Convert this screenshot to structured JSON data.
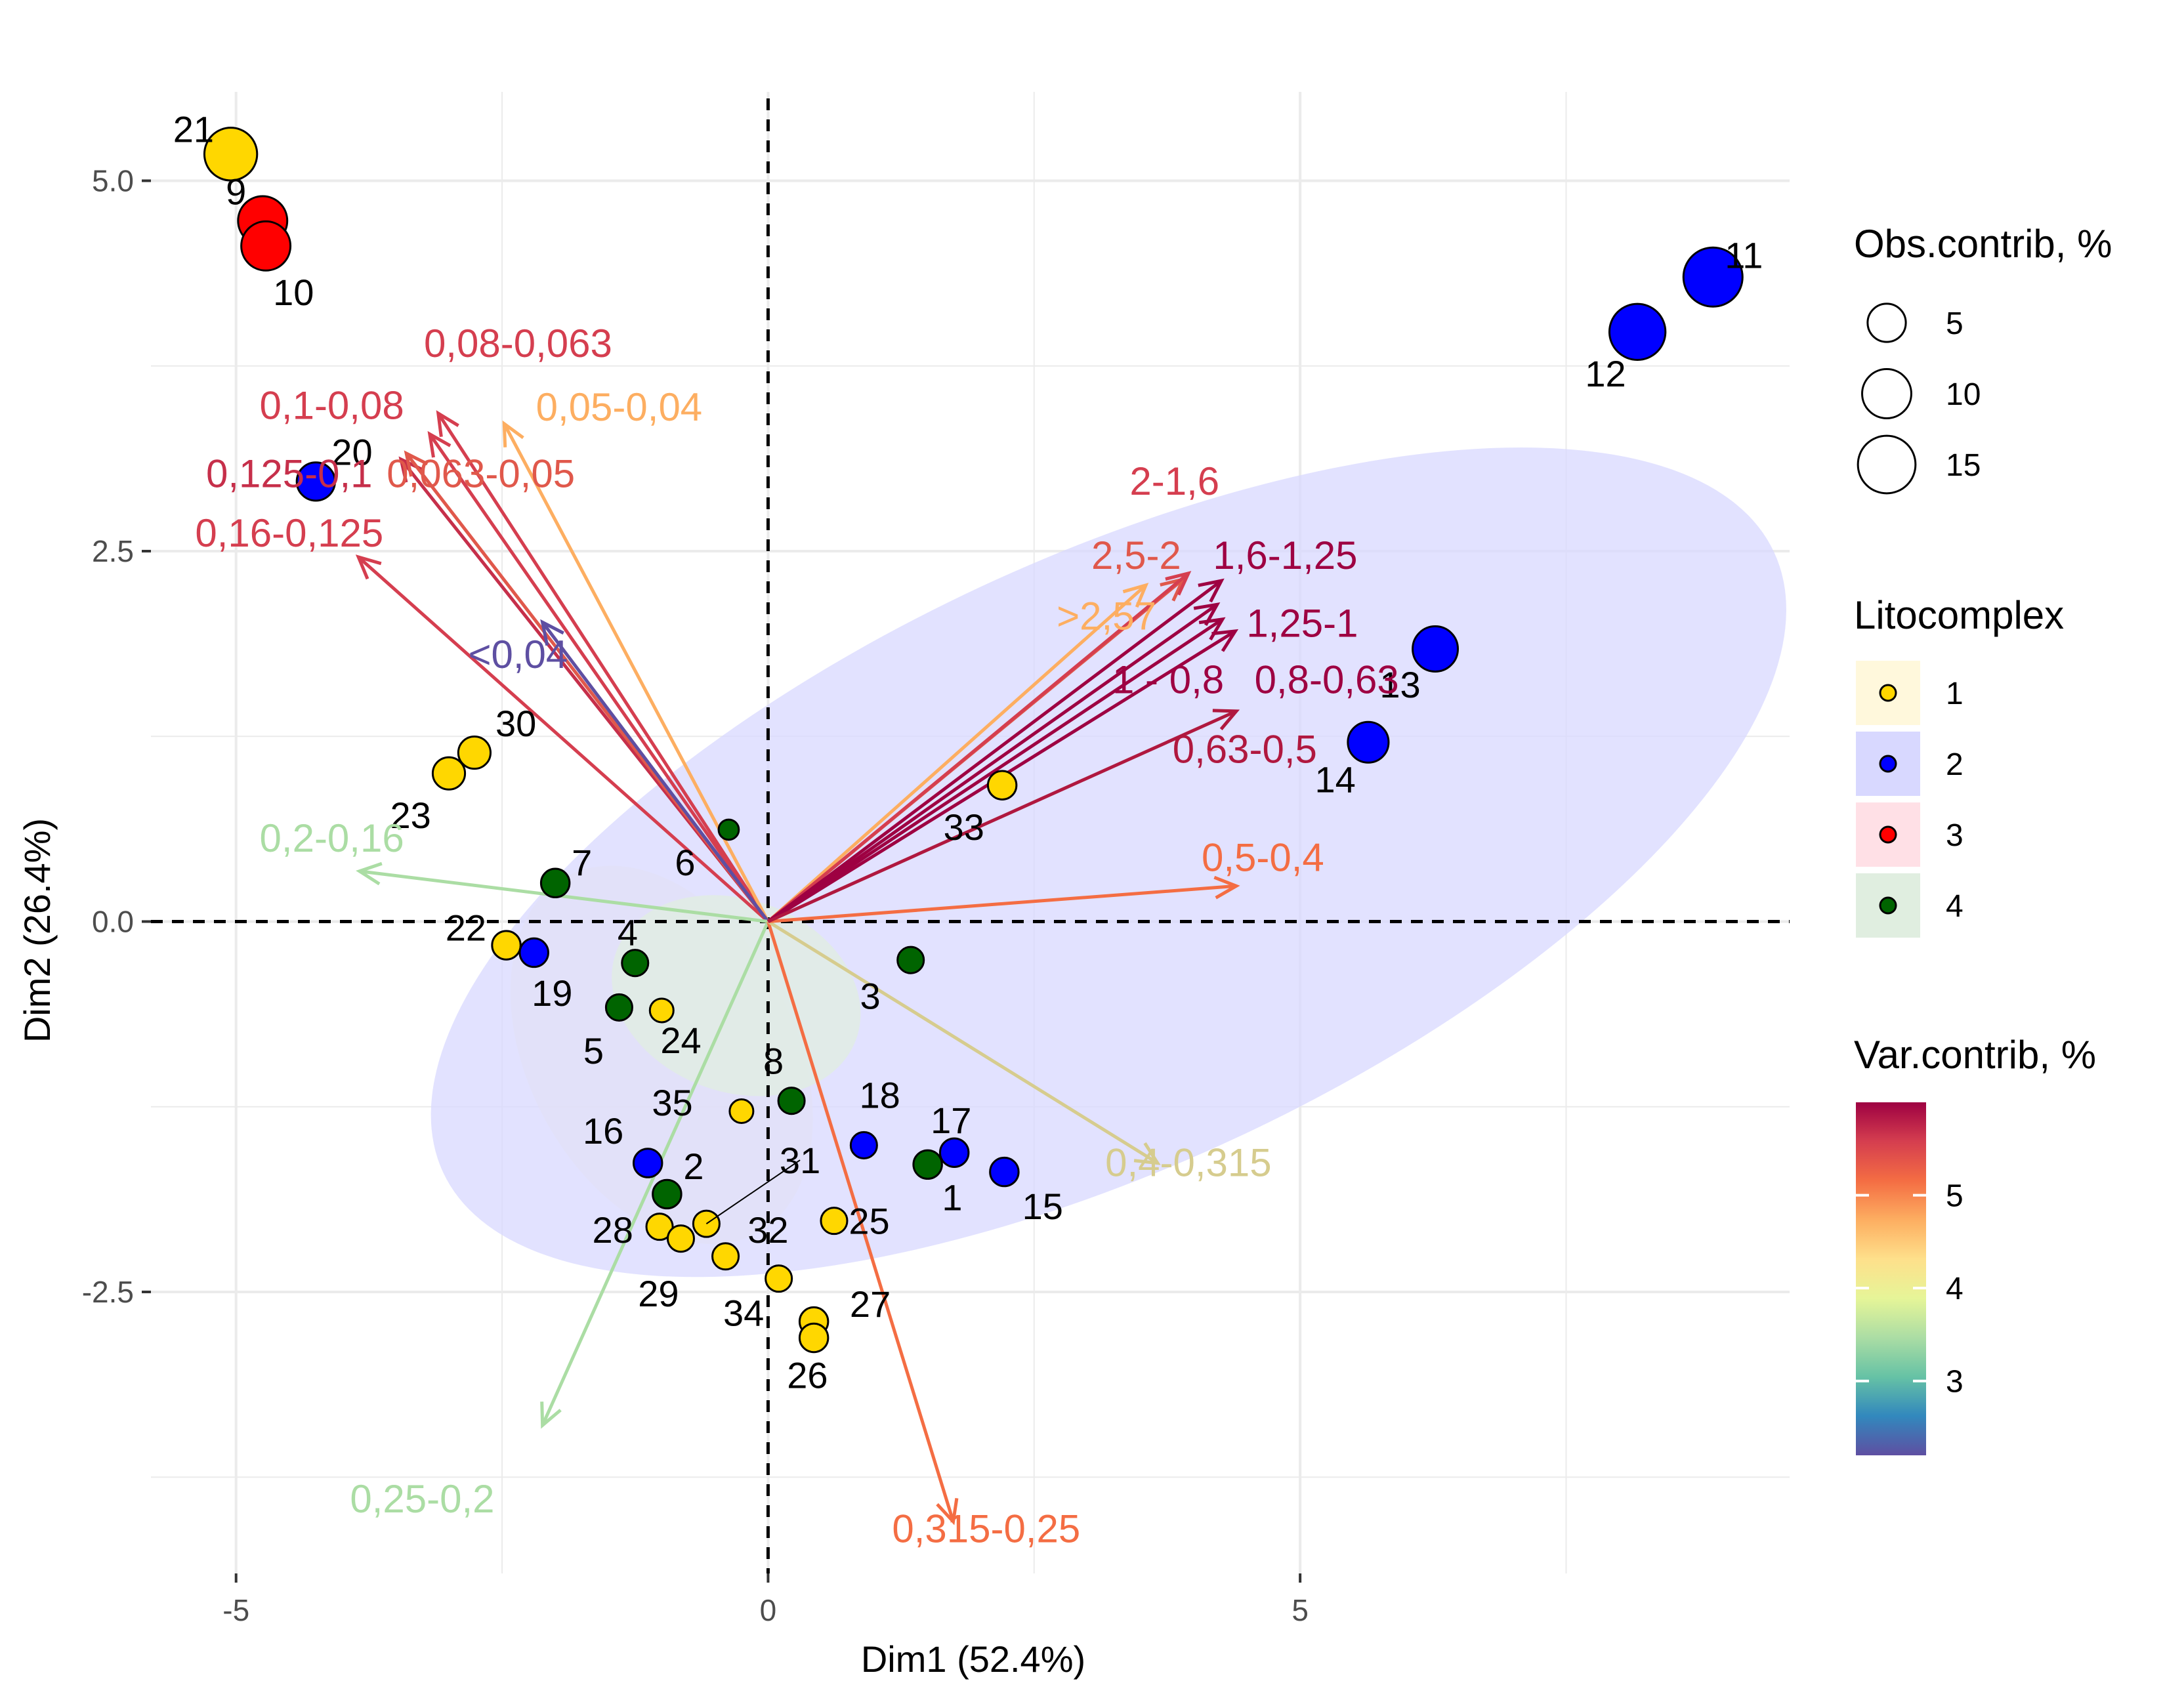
{
  "chart_data": {
    "type": "scatter",
    "subtype": "pca-biplot",
    "title": "",
    "xlabel": "Dim1 (52.4%)",
    "ylabel": "Dim2 (26.4%)",
    "xlim": [
      -5.8,
      9.6
    ],
    "ylim": [
      -4.4,
      5.6
    ],
    "x_ticks": [
      -5,
      0,
      5
    ],
    "x_tick_labels": [
      "-5",
      "0",
      "5"
    ],
    "y_ticks": [
      -2.5,
      0.0,
      2.5,
      5.0
    ],
    "y_tick_labels": [
      "-2.5",
      "0.0",
      "2.5",
      "5.0"
    ],
    "grid": true,
    "reference_lines": {
      "x": 0,
      "y": 0,
      "style": "dashed"
    },
    "group_colors": {
      "1": "#FFD700",
      "2": "#0000FF",
      "3": "#FF0000",
      "4": "#006400"
    },
    "ellipse_colors": {
      "1": "#FFF8DC",
      "2": "#D8D8FF",
      "3": "#FFE0E6",
      "4": "#E0EEE0"
    },
    "points": [
      {
        "label": "21",
        "x": -5.05,
        "y": 5.18,
        "group": "1",
        "contrib": 12
      },
      {
        "label": "9",
        "x": -4.75,
        "y": 4.73,
        "group": "3",
        "contrib": 10
      },
      {
        "label": "10",
        "x": -4.72,
        "y": 4.56,
        "group": "3",
        "contrib": 10
      },
      {
        "label": "20",
        "x": -4.25,
        "y": 2.97,
        "group": "2",
        "contrib": 5
      },
      {
        "label": "11",
        "x": 8.88,
        "y": 4.35,
        "group": "2",
        "contrib": 16
      },
      {
        "label": "12",
        "x": 8.17,
        "y": 3.98,
        "group": "2",
        "contrib": 14
      },
      {
        "label": "13",
        "x": 6.27,
        "y": 1.84,
        "group": "2",
        "contrib": 8
      },
      {
        "label": "14",
        "x": 5.64,
        "y": 1.21,
        "group": "2",
        "contrib": 6
      },
      {
        "label": "33",
        "x": 2.2,
        "y": 0.92,
        "group": "1",
        "contrib": 2
      },
      {
        "label": "30",
        "x": -2.76,
        "y": 1.14,
        "group": "1",
        "contrib": 3
      },
      {
        "label": "23",
        "x": -3.0,
        "y": 1.0,
        "group": "1",
        "contrib": 3
      },
      {
        "label": "6",
        "x": -0.37,
        "y": 0.62,
        "group": "4",
        "contrib": 0.5
      },
      {
        "label": "7",
        "x": -2.0,
        "y": 0.26,
        "group": "4",
        "contrib": 2
      },
      {
        "label": "22",
        "x": -2.46,
        "y": -0.16,
        "group": "1",
        "contrib": 2
      },
      {
        "label": "19",
        "x": -2.2,
        "y": -0.21,
        "group": "2",
        "contrib": 2
      },
      {
        "label": "4",
        "x": -1.25,
        "y": -0.28,
        "group": "4",
        "contrib": 1.5
      },
      {
        "label": "3",
        "x": 1.34,
        "y": -0.26,
        "group": "4",
        "contrib": 1.5
      },
      {
        "label": "5",
        "x": -1.4,
        "y": -0.58,
        "group": "4",
        "contrib": 1.5
      },
      {
        "label": "24",
        "x": -1.0,
        "y": -0.6,
        "group": "1",
        "contrib": 1
      },
      {
        "label": "8",
        "x": 0.22,
        "y": -1.21,
        "group": "4",
        "contrib": 1.5
      },
      {
        "label": "35",
        "x": -0.25,
        "y": -1.28,
        "group": "1",
        "contrib": 1
      },
      {
        "label": "18",
        "x": 0.9,
        "y": -1.51,
        "group": "2",
        "contrib": 1.5
      },
      {
        "label": "17",
        "x": 1.75,
        "y": -1.56,
        "group": "2",
        "contrib": 2
      },
      {
        "label": "1",
        "x": 1.5,
        "y": -1.64,
        "group": "4",
        "contrib": 2
      },
      {
        "label": "15",
        "x": 2.22,
        "y": -1.69,
        "group": "2",
        "contrib": 2
      },
      {
        "label": "16",
        "x": -1.13,
        "y": -1.63,
        "group": "2",
        "contrib": 2
      },
      {
        "label": "2",
        "x": -0.95,
        "y": -1.84,
        "group": "4",
        "contrib": 2
      },
      {
        "label": "31",
        "x": -0.58,
        "y": -2.04,
        "group": "1",
        "contrib": 1.5
      },
      {
        "label": "25",
        "x": 0.62,
        "y": -2.02,
        "group": "1",
        "contrib": 1.5
      },
      {
        "label": "28",
        "x": -1.02,
        "y": -2.06,
        "group": "1",
        "contrib": 1.5
      },
      {
        "label": "32",
        "x": -0.82,
        "y": -2.14,
        "group": "1",
        "contrib": 1.5
      },
      {
        "label": "29",
        "x": -0.4,
        "y": -2.26,
        "group": "1",
        "contrib": 1.5
      },
      {
        "label": "34",
        "x": 0.1,
        "y": -2.41,
        "group": "1",
        "contrib": 1.5
      },
      {
        "label": "27",
        "x": 0.43,
        "y": -2.7,
        "group": "1",
        "contrib": 2
      },
      {
        "label": "26",
        "x": 0.43,
        "y": -2.81,
        "group": "1",
        "contrib": 2
      }
    ],
    "point_labels": [
      {
        "point": "21",
        "x": -5.4,
        "y": 5.35
      },
      {
        "point": "9",
        "x": -5.0,
        "y": 4.93
      },
      {
        "point": "10",
        "x": -4.46,
        "y": 4.25
      },
      {
        "point": "20",
        "x": -3.91,
        "y": 3.17
      },
      {
        "point": "11",
        "x": 9.17,
        "y": 4.5
      },
      {
        "point": "12",
        "x": 7.87,
        "y": 3.7
      },
      {
        "point": "13",
        "x": 5.94,
        "y": 1.6
      },
      {
        "point": "14",
        "x": 5.33,
        "y": 0.96
      },
      {
        "point": "33",
        "x": 1.84,
        "y": 0.64
      },
      {
        "point": "30",
        "x": -2.37,
        "y": 1.34
      },
      {
        "point": "23",
        "x": -3.36,
        "y": 0.72
      },
      {
        "point": "6",
        "x": -0.78,
        "y": 0.4
      },
      {
        "point": "7",
        "x": -1.75,
        "y": 0.4
      },
      {
        "point": "22",
        "x": -2.84,
        "y": -0.04
      },
      {
        "point": "19",
        "x": -2.03,
        "y": -0.48
      },
      {
        "point": "4",
        "x": -1.32,
        "y": -0.07
      },
      {
        "point": "3",
        "x": 0.96,
        "y": -0.5
      },
      {
        "point": "5",
        "x": -1.64,
        "y": -0.87
      },
      {
        "point": "24",
        "x": -0.82,
        "y": -0.8
      },
      {
        "point": "8",
        "x": 0.05,
        "y": -0.94
      },
      {
        "point": "35",
        "x": -0.9,
        "y": -1.22
      },
      {
        "point": "18",
        "x": 1.05,
        "y": -1.17
      },
      {
        "point": "17",
        "x": 1.72,
        "y": -1.34
      },
      {
        "point": "1",
        "x": 1.73,
        "y": -1.86
      },
      {
        "point": "15",
        "x": 2.58,
        "y": -1.92
      },
      {
        "point": "16",
        "x": -1.55,
        "y": -1.41
      },
      {
        "point": "2",
        "x": -0.7,
        "y": -1.65
      },
      {
        "point": "31",
        "x": 0.3,
        "y": -1.61
      },
      {
        "point": "25",
        "x": 0.95,
        "y": -2.02
      },
      {
        "point": "28",
        "x": -1.46,
        "y": -2.08
      },
      {
        "point": "32",
        "x": 0.0,
        "y": -2.08
      },
      {
        "point": "29",
        "x": -1.03,
        "y": -2.51
      },
      {
        "point": "34",
        "x": -0.23,
        "y": -2.64
      },
      {
        "point": "27",
        "x": 0.96,
        "y": -2.58
      },
      {
        "point": "26",
        "x": 0.37,
        "y": -3.06
      }
    ],
    "ellipses": [
      {
        "group": "1",
        "cx": -1.0,
        "cy": -0.9,
        "rx": 1.9,
        "ry": 0.9,
        "angle": -62
      },
      {
        "group": "2",
        "cx": 3.2,
        "cy": 0.4,
        "rx": 6.9,
        "ry": 2.05,
        "angle": 25
      },
      {
        "group": "4",
        "cx": -0.3,
        "cy": -0.5,
        "rx": 1.2,
        "ry": 0.65,
        "angle": -20
      }
    ],
    "variables": [
      {
        "name": "0,08-0,063",
        "x": -3.1,
        "y": 3.43,
        "contrib": 5.7,
        "color": "#D53E4F",
        "label_x": -2.35,
        "label_y": 3.9
      },
      {
        "name": "0,1-0,08",
        "x": -3.18,
        "y": 3.29,
        "contrib": 5.8,
        "color": "#D53E4F",
        "label_x": -4.1,
        "label_y": 3.48
      },
      {
        "name": "0,05-0,04",
        "x": -2.48,
        "y": 3.36,
        "contrib": 4.6,
        "color": "#FDAE61",
        "label_x": -1.4,
        "label_y": 3.47
      },
      {
        "name": "0,125-0,1",
        "x": -3.45,
        "y": 3.12,
        "contrib": 5.9,
        "color": "#C62F4A",
        "label_x": -4.5,
        "label_y": 3.02
      },
      {
        "name": "0,063-0,05",
        "x": -3.4,
        "y": 3.16,
        "contrib": 5.4,
        "color": "#E0584B",
        "label_x": -2.7,
        "label_y": 3.02
      },
      {
        "name": "0,16-0,125",
        "x": -3.85,
        "y": 2.46,
        "contrib": 5.6,
        "color": "#D53E4F",
        "label_x": -4.5,
        "label_y": 2.62
      },
      {
        "name": "<0,04",
        "x": -2.12,
        "y": 2.02,
        "contrib": 2.4,
        "color": "#5E4FA2",
        "label_x": -2.35,
        "label_y": 1.8
      },
      {
        "name": "0,2-0,16",
        "x": -3.84,
        "y": 0.34,
        "contrib": 3.8,
        "color": "#ABDDA4",
        "label_x": -4.1,
        "label_y": 0.56
      },
      {
        "name": "0,25-0,2",
        "x": -2.12,
        "y": -3.4,
        "contrib": 3.8,
        "color": "#ABDDA4",
        "label_x": -3.25,
        "label_y": -3.9
      },
      {
        "name": "0,315-0,25",
        "x": 1.74,
        "y": -4.05,
        "contrib": 4.9,
        "color": "#F46D43",
        "label_x": 2.05,
        "label_y": -4.1
      },
      {
        "name": "0,4-0,315",
        "x": 3.66,
        "y": -1.63,
        "contrib": 4.2,
        "color": "#D6CC8E",
        "label_x": 3.95,
        "label_y": -1.63
      },
      {
        "name": "0,5-0,4",
        "x": 4.4,
        "y": 0.24,
        "contrib": 5.1,
        "color": "#F46D43",
        "label_x": 4.65,
        "label_y": 0.43
      },
      {
        "name": ">2,57",
        "x": 3.55,
        "y": 2.27,
        "contrib": 4.5,
        "color": "#FDAE61",
        "label_x": 3.18,
        "label_y": 2.06
      },
      {
        "name": "2,5-2",
        "x": 3.9,
        "y": 2.31,
        "contrib": 5.4,
        "color": "#E0584B",
        "label_x": 3.46,
        "label_y": 2.47
      },
      {
        "name": "2-1,6",
        "x": 3.95,
        "y": 2.35,
        "contrib": 5.8,
        "color": "#D53E4F",
        "label_x": 3.82,
        "label_y": 2.97
      },
      {
        "name": "1,6-1,25",
        "x": 4.26,
        "y": 2.3,
        "contrib": 6.0,
        "color": "#9E0142",
        "label_x": 4.86,
        "label_y": 2.47
      },
      {
        "name": "1,25-1",
        "x": 4.22,
        "y": 2.14,
        "contrib": 6.0,
        "color": "#9E0142",
        "label_x": 5.02,
        "label_y": 2.01
      },
      {
        "name": "1 - 0,8",
        "x": 4.27,
        "y": 2.04,
        "contrib": 6.0,
        "color": "#9E0142",
        "label_x": 3.76,
        "label_y": 1.63
      },
      {
        "name": "0,8-0,63",
        "x": 4.39,
        "y": 1.96,
        "contrib": 6.0,
        "color": "#9E0142",
        "label_x": 5.25,
        "label_y": 1.63
      },
      {
        "name": "0,63-0,5",
        "x": 4.4,
        "y": 1.42,
        "contrib": 5.9,
        "color": "#B0183F",
        "label_x": 4.48,
        "label_y": 1.16
      }
    ],
    "legends": {
      "size": {
        "title": "Obs.contrib, %",
        "values": [
          5,
          10,
          15
        ],
        "labels": [
          "5",
          "10",
          "15"
        ]
      },
      "group": {
        "title": "Litocomplex",
        "entries": [
          "1",
          "2",
          "3",
          "4"
        ]
      },
      "colorbar": {
        "title": "Var.contrib, %",
        "min": 2.2,
        "max": 6.0,
        "ticks": [
          3,
          4,
          5
        ],
        "tick_labels": [
          "3",
          "4",
          "5"
        ],
        "palette": [
          "#5E4FA2",
          "#3288BD",
          "#66C2A5",
          "#ABDDA4",
          "#E6F598",
          "#FEE08B",
          "#FDAE61",
          "#F46D43",
          "#D53E4F",
          "#9E0142"
        ]
      },
      "placement": "right"
    }
  }
}
